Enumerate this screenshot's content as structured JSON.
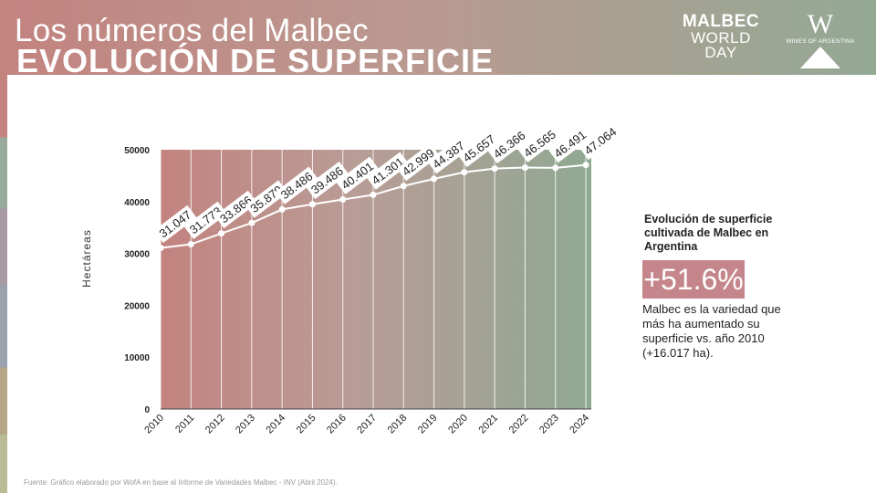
{
  "header": {
    "title_line1": "Los números del Malbec",
    "title_line2": "EVOLUCIÓN DE SUPERFICIE",
    "logo_malbec": {
      "line1": "MALBEC",
      "line2": "WORLD",
      "line3": "DAY"
    },
    "logo_wofa": {
      "mark": "W",
      "text": "WINES OF ARGENTINA"
    }
  },
  "chart_data": {
    "type": "line",
    "ylabel": "Hectáreas",
    "xlabel": "",
    "ylim": [
      0,
      50000
    ],
    "y_ticks": [
      "0",
      "10000",
      "20000",
      "30000",
      "40000",
      "50000"
    ],
    "categories": [
      "2010",
      "2011",
      "2012",
      "2013",
      "2014",
      "2015",
      "2016",
      "2017",
      "2018",
      "2019",
      "2020",
      "2021",
      "2022",
      "2023",
      "2024"
    ],
    "values": [
      31047,
      31773,
      33866,
      35879,
      38486,
      39486,
      40401,
      41301,
      42999,
      44387,
      45657,
      46366,
      46565,
      46491,
      47064
    ],
    "data_labels": [
      "31.047",
      "31.773",
      "33.866",
      "35.879",
      "38.486",
      "39.486",
      "40.401",
      "41.301",
      "42.999",
      "44.387",
      "45.657",
      "46.366",
      "46.565",
      "46.491",
      "47.064"
    ],
    "grid": "vertical",
    "colors": {
      "start": "#c3837f",
      "end": "#8fa992",
      "line": "#ffffff"
    }
  },
  "side": {
    "title": "Evolución de superficie cultivada de Malbec en Argentina",
    "badge": "+51.6%",
    "badge_color": "#c4858b",
    "description": "Malbec es la variedad que más ha aumentado su superficie  vs. año 2010 (+16.017 ha)."
  },
  "footer": {
    "source": "Fuente: Gráfico elaborado por WofA en base al Informe de Variedades  Malbec - INV (Abril 2024)."
  }
}
